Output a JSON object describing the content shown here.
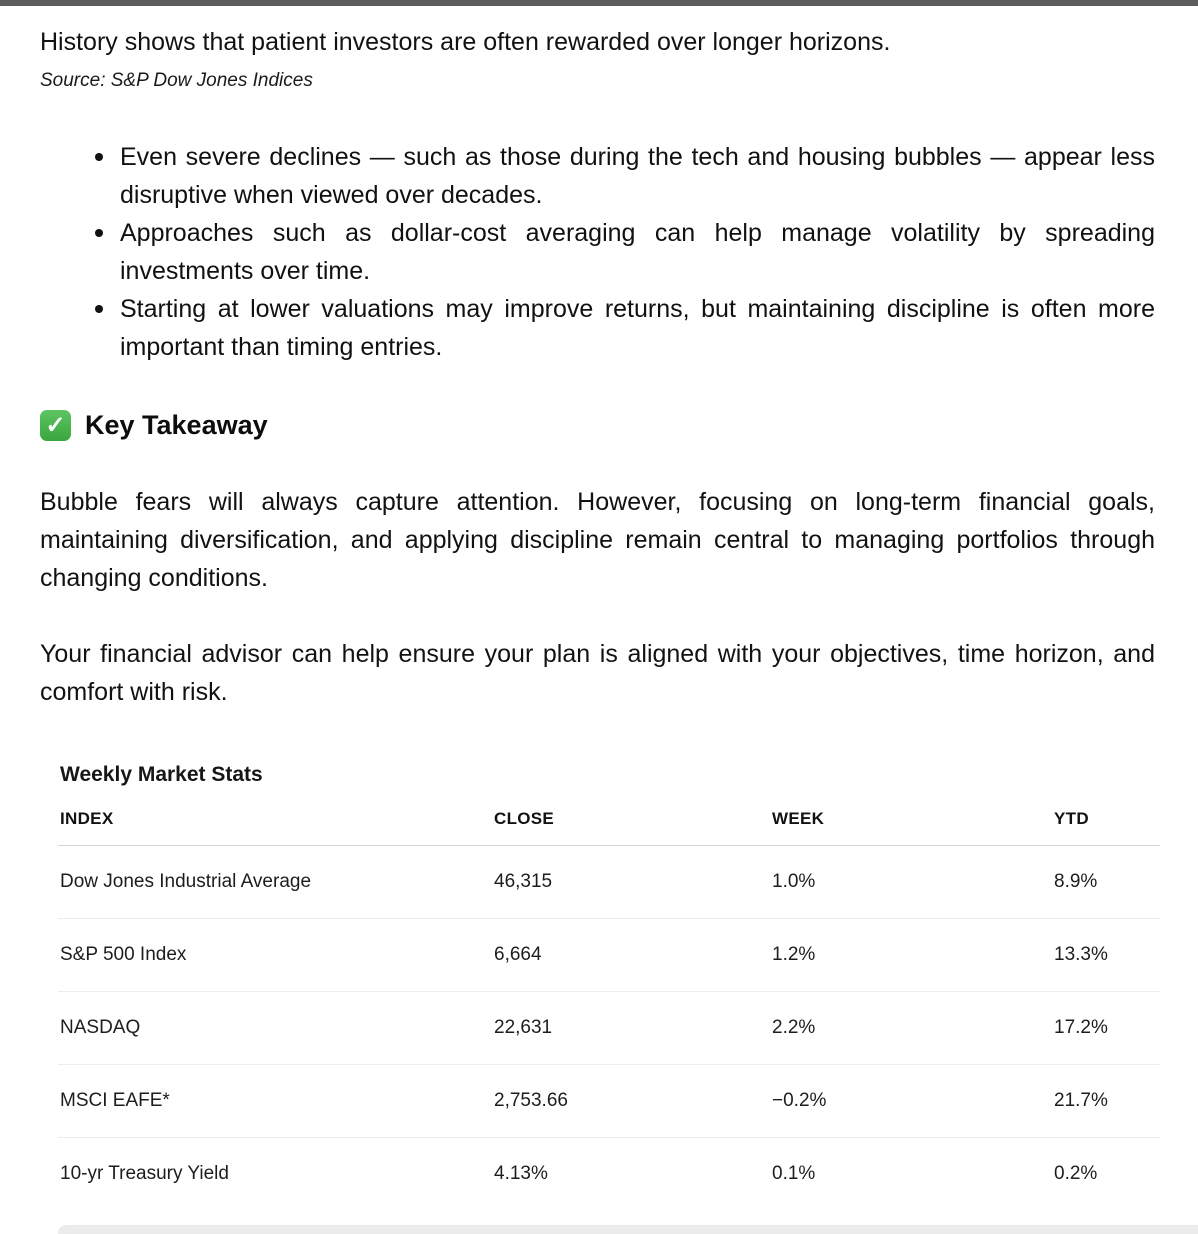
{
  "page": {
    "intro_line": "History shows that patient investors are often rewarded over longer horizons.",
    "source_line": "Source: S&P Dow Jones Indices",
    "bullets": [
      "Even severe declines — such as those during the tech and housing bubbles — appear less disruptive when viewed over decades.",
      "Approaches such as dollar-cost averaging can help manage volatility by spreading investments over time.",
      "Starting at lower valuations may improve returns, but maintaining discipline is often more important than timing entries."
    ],
    "takeaway": {
      "icon": "green-check-emoji",
      "check_glyph": "✓",
      "heading": "Key Takeaway",
      "paragraph1": "Bubble fears will always capture attention. However, focusing on long-term financial goals, maintaining diversification, and applying discipline remain central to managing portfolios through changing conditions.",
      "paragraph2": "Your financial advisor can help ensure your plan is aligned with your objectives, time horizon, and comfort with risk."
    }
  },
  "market_stats": {
    "title": "Weekly Market Stats",
    "columns": {
      "index": "INDEX",
      "close": "CLOSE",
      "week": "WEEK",
      "ytd": "YTD"
    },
    "rows": [
      {
        "index": "Dow Jones Industrial Average",
        "close": "46,315",
        "week": "1.0%",
        "ytd": "8.9%"
      },
      {
        "index": "S&P 500 Index",
        "close": "6,664",
        "week": "1.2%",
        "ytd": "13.3%"
      },
      {
        "index": "NASDAQ",
        "close": "22,631",
        "week": "2.2%",
        "ytd": "17.2%"
      },
      {
        "index": "MSCI EAFE*",
        "close": "2,753.66",
        "week": "−0.2%",
        "ytd": "21.7%"
      },
      {
        "index": "10-yr Treasury Yield",
        "close": "4.13%",
        "week": "0.1%",
        "ytd": "0.2%"
      }
    ]
  },
  "colors": {
    "top_bar": "#5d5d5d",
    "bottom_bar": "#ececec",
    "check_green": "#43a047",
    "body_text": "#121212",
    "separator": "#ececec",
    "header_underline": "#d6d6d6"
  }
}
